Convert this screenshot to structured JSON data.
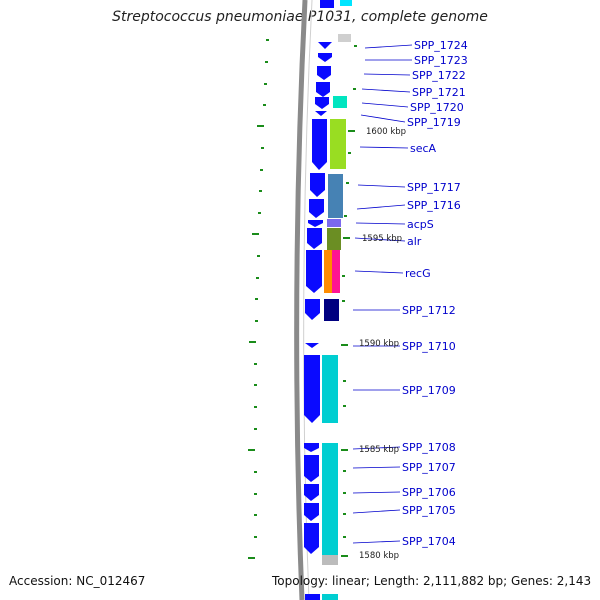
{
  "title": "Streptococcus pneumoniae P1031, complete genome",
  "accession": "Accession: NC_012467",
  "topology": "Topology: linear; Length: 2,111,882 bp; Genes: 2,143",
  "scale_labels": [
    "1600 kbp",
    "1595 kbp",
    "1590 kbp",
    "1585 kbp",
    "1580 kbp"
  ],
  "genes": [
    "SPP_1724",
    "SPP_1723",
    "SPP_1722",
    "SPP_1721",
    "SPP_1720",
    "SPP_1719",
    "secA",
    "SPP_1717",
    "SPP_1716",
    "acpS",
    "alr",
    "recG",
    "SPP_1712",
    "SPP_1710",
    "SPP_1709",
    "SPP_1708",
    "SPP_1707",
    "SPP_1706",
    "SPP_1705",
    "SPP_1704"
  ],
  "colors": {
    "strand": "#0a0aff",
    "label": "#0000cc",
    "tick": "#1a8c1a",
    "backbone": "#888888",
    "cog": [
      "#00e5c0",
      "#99dd22",
      "#4682b4",
      "#7b68ee",
      "#6b8e23",
      "#ff8c00",
      "#ff1493",
      "#000080",
      "#00ced1"
    ]
  }
}
